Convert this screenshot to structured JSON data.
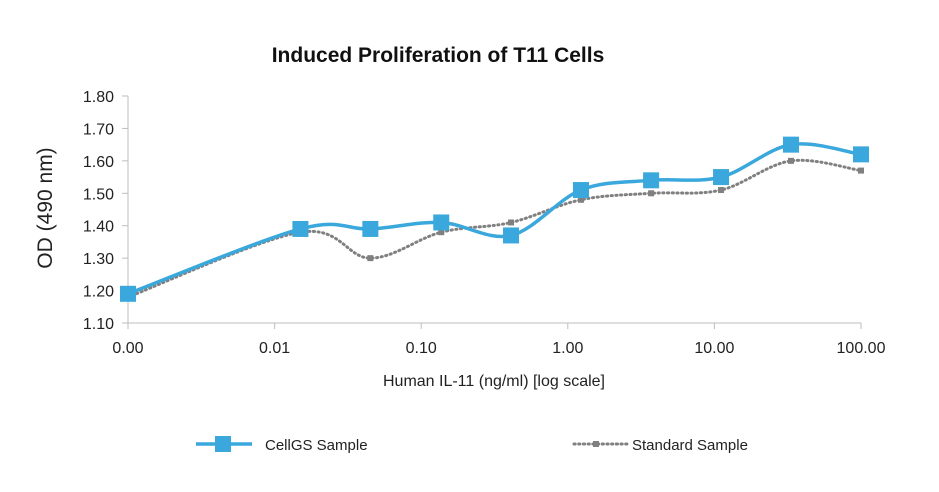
{
  "chart_data": {
    "type": "line",
    "title": "Induced Proliferation of T11 Cells",
    "xlabel": "Human IL-11 (ng/ml) [log scale]",
    "ylabel": "OD (490 nm)",
    "x_scale": "log",
    "x_tick_labels": [
      "0.00",
      "0.01",
      "0.10",
      "1.00",
      "10.00",
      "100.00"
    ],
    "y_tick_labels": [
      "1.10",
      "1.20",
      "1.30",
      "1.40",
      "1.50",
      "1.60",
      "1.70",
      "1.80"
    ],
    "ylim": [
      1.1,
      1.8
    ],
    "grid": false,
    "legend_position": "bottom",
    "x": [
      0.001,
      0.015,
      0.045,
      0.137,
      0.41,
      1.23,
      3.7,
      11.1,
      33.3,
      100
    ],
    "series": [
      {
        "name": "CellGS Sample",
        "color": "#3aa8dc",
        "style": "solid smooth line, square markers",
        "values": [
          1.19,
          1.39,
          1.39,
          1.41,
          1.37,
          1.51,
          1.54,
          1.55,
          1.65,
          1.62
        ]
      },
      {
        "name": "Standard Sample",
        "color": "#808080",
        "style": "dotted smooth line, small square markers",
        "values": [
          1.18,
          1.38,
          1.3,
          1.38,
          1.41,
          1.48,
          1.5,
          1.51,
          1.6,
          1.57
        ]
      }
    ]
  }
}
